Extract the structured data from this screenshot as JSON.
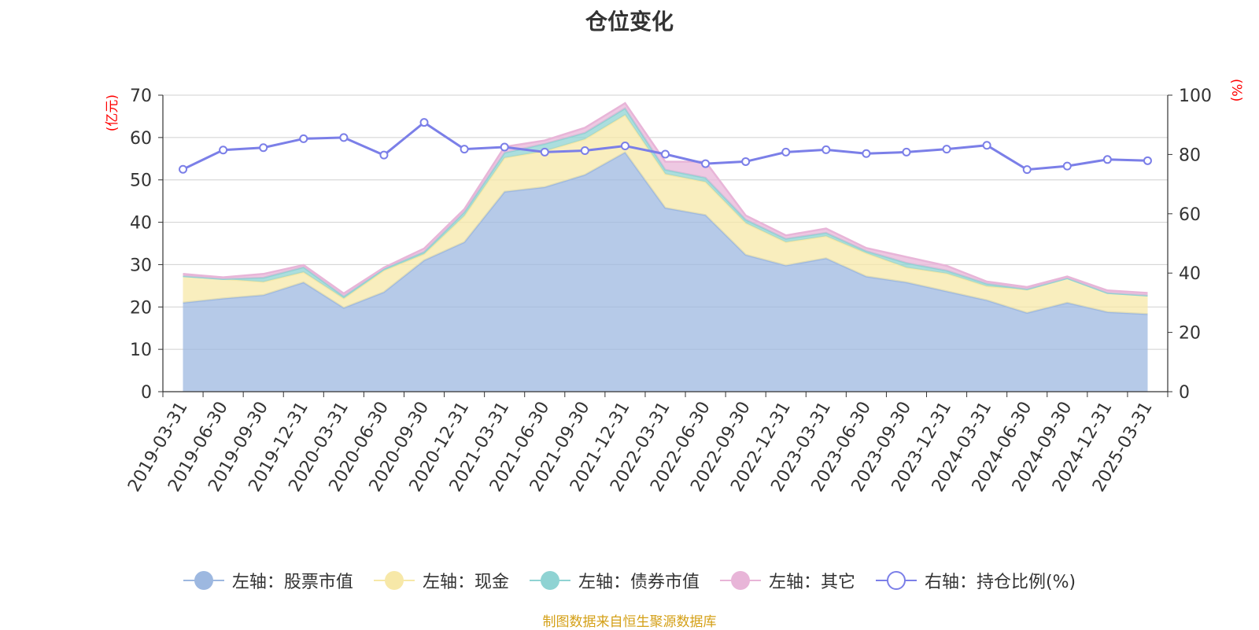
{
  "chart_data": {
    "type": "area",
    "title": "仓位变化",
    "left_unit": "(亿元)",
    "right_unit": "(%)",
    "left_ylim": [
      0,
      70
    ],
    "left_ticks": [
      0,
      10,
      20,
      30,
      40,
      50,
      60,
      70
    ],
    "right_ylim": [
      0,
      100
    ],
    "right_ticks": [
      0,
      20,
      40,
      60,
      80,
      100
    ],
    "grid": true,
    "legend_placement": "bottom",
    "categories": [
      "2019-03-31",
      "2019-06-30",
      "2019-09-30",
      "2019-12-31",
      "2020-03-31",
      "2020-06-30",
      "2020-09-30",
      "2020-12-31",
      "2021-03-31",
      "2021-06-30",
      "2021-09-30",
      "2021-12-31",
      "2022-03-31",
      "2022-06-30",
      "2022-09-30",
      "2022-12-31",
      "2023-03-31",
      "2023-06-30",
      "2023-09-30",
      "2023-12-31",
      "2024-03-31",
      "2024-06-30",
      "2024-09-30",
      "2024-12-31",
      "2025-03-31"
    ],
    "series": [
      {
        "name": "左轴：股票市值",
        "axis": "left",
        "kind": "area",
        "color": "#9db8e0",
        "values": [
          21.0,
          22.0,
          22.8,
          25.8,
          19.8,
          23.5,
          31.0,
          35.3,
          47.2,
          48.3,
          51.2,
          56.5,
          43.4,
          41.7,
          32.3,
          29.8,
          31.5,
          27.2,
          25.8,
          23.7,
          21.6,
          18.6,
          21.0,
          18.8,
          18.3
        ]
      },
      {
        "name": "左轴：现金",
        "axis": "left",
        "kind": "area",
        "color": "#f7e8a8",
        "values": [
          6.3,
          4.6,
          3.1,
          2.4,
          2.2,
          5.1,
          1.5,
          6.2,
          8.0,
          8.5,
          8.4,
          8.8,
          8.0,
          7.8,
          7.5,
          5.5,
          5.2,
          5.5,
          3.5,
          4.2,
          3.3,
          5.5,
          5.8,
          4.5,
          4.4
        ]
      },
      {
        "name": "左轴：债券市值",
        "axis": "left",
        "kind": "area",
        "color": "#8fd3d3",
        "values": [
          0.0,
          0.0,
          1.0,
          1.2,
          0.5,
          0.4,
          0.5,
          0.9,
          1.2,
          1.7,
          1.5,
          1.6,
          1.0,
          1.0,
          0.8,
          0.8,
          0.8,
          0.5,
          1.1,
          0.7,
          0.6,
          0.1,
          0.0,
          0.0,
          0.0
        ]
      },
      {
        "name": "左轴：其它",
        "axis": "left",
        "kind": "area",
        "color": "#e8b5d8",
        "values": [
          0.5,
          0.4,
          0.9,
          0.5,
          0.7,
          0.3,
          0.8,
          0.7,
          1.4,
          0.8,
          1.2,
          1.2,
          1.9,
          3.8,
          1.0,
          0.8,
          1.0,
          0.7,
          1.4,
          1.1,
          0.5,
          0.5,
          0.4,
          0.6,
          0.6
        ]
      },
      {
        "name": "右轴：持仓比例(%)",
        "axis": "right",
        "kind": "line",
        "color": "#7b7fe8",
        "values": [
          75.0,
          81.5,
          82.3,
          85.3,
          85.7,
          79.8,
          90.8,
          81.8,
          82.5,
          80.8,
          81.3,
          82.9,
          80.1,
          76.9,
          77.6,
          80.8,
          81.6,
          80.3,
          80.8,
          81.8,
          83.1,
          74.9,
          76.1,
          78.3,
          77.9
        ]
      }
    ],
    "source_note": "制图数据来自恒生聚源数据库"
  }
}
